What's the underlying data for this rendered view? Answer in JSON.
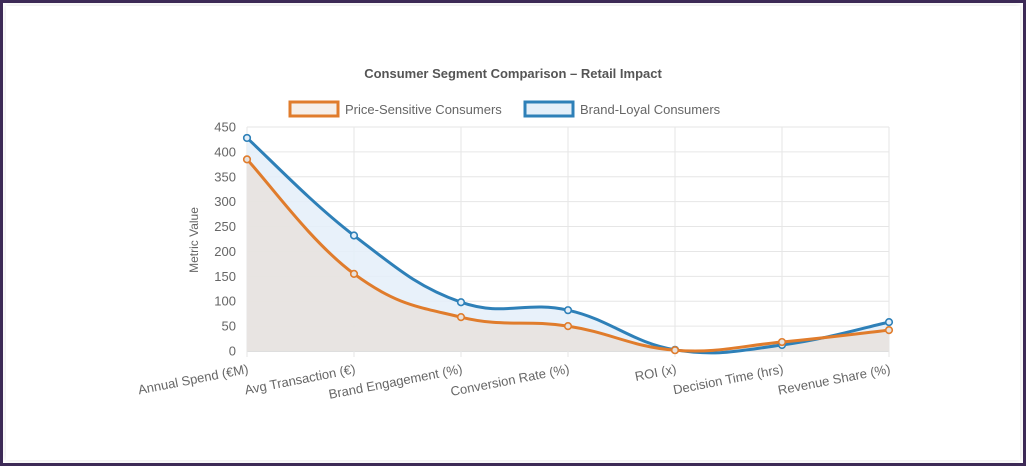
{
  "chart_data": {
    "type": "line",
    "title": "Consumer Segment Comparison – Retail Impact",
    "xlabel": "",
    "ylabel": "Metric Value",
    "ylim": [
      0,
      450
    ],
    "yticks": [
      0,
      50,
      100,
      150,
      200,
      250,
      300,
      350,
      400,
      450
    ],
    "grid": true,
    "legend": "top-center",
    "categories": [
      "Annual Spend (€M)",
      "Avg Transaction (€)",
      "Brand Engagement (%)",
      "Conversion Rate (%)",
      "ROI (x)",
      "Decision Time (hrs)",
      "Revenue Share (%)"
    ],
    "series": [
      {
        "name": "Price-Sensitive Consumers",
        "color": "#e07c2c",
        "fill": "#e8e2dd",
        "values": [
          385,
          155,
          68,
          50,
          1.6,
          18,
          42
        ]
      },
      {
        "name": "Brand-Loyal Consumers",
        "color": "#2e80b8",
        "fill": "#e4eff9",
        "values": [
          428,
          232,
          98,
          82,
          2.4,
          12,
          58
        ]
      }
    ]
  }
}
